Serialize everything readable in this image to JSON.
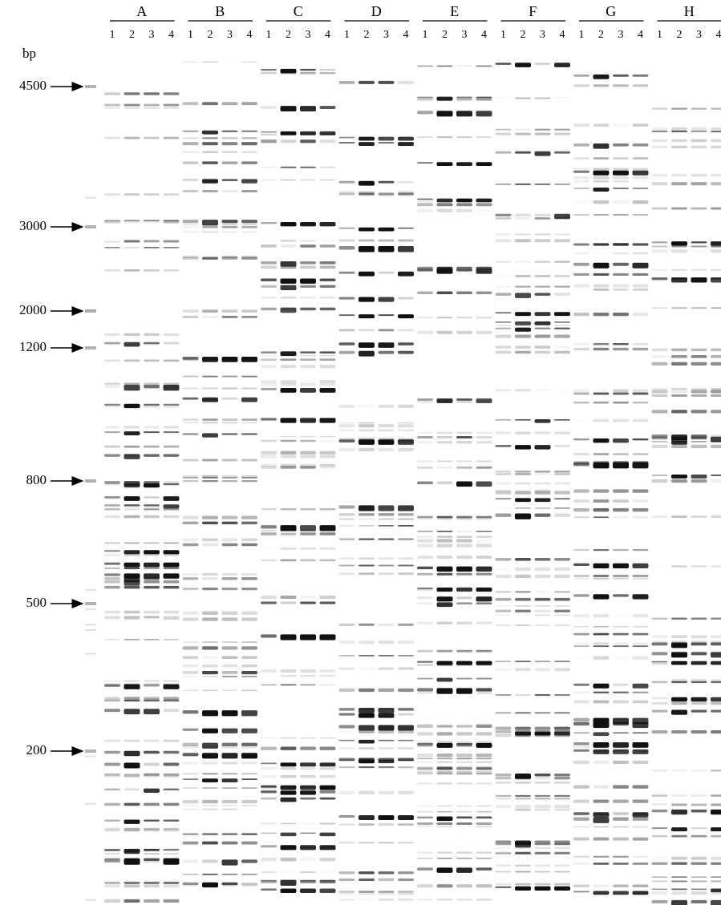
{
  "unit_label": "bp",
  "markers": [
    "4500",
    "3000",
    "2000",
    "1200",
    "800",
    "500",
    "200"
  ],
  "groups": [
    {
      "label": "A",
      "lanes": [
        "1",
        "2",
        "3",
        "4"
      ]
    },
    {
      "label": "B",
      "lanes": [
        "1",
        "2",
        "3",
        "4"
      ]
    },
    {
      "label": "C",
      "lanes": [
        "1",
        "2",
        "3",
        "4"
      ]
    },
    {
      "label": "D",
      "lanes": [
        "1",
        "2",
        "3",
        "4"
      ]
    },
    {
      "label": "E",
      "lanes": [
        "1",
        "2",
        "3",
        "4"
      ]
    },
    {
      "label": "F",
      "lanes": [
        "1",
        "2",
        "3",
        "4"
      ]
    },
    {
      "label": "G",
      "lanes": [
        "1",
        "2",
        "3",
        "4"
      ]
    },
    {
      "label": "H",
      "lanes": [
        "1",
        "2",
        "3",
        "4"
      ]
    }
  ]
}
